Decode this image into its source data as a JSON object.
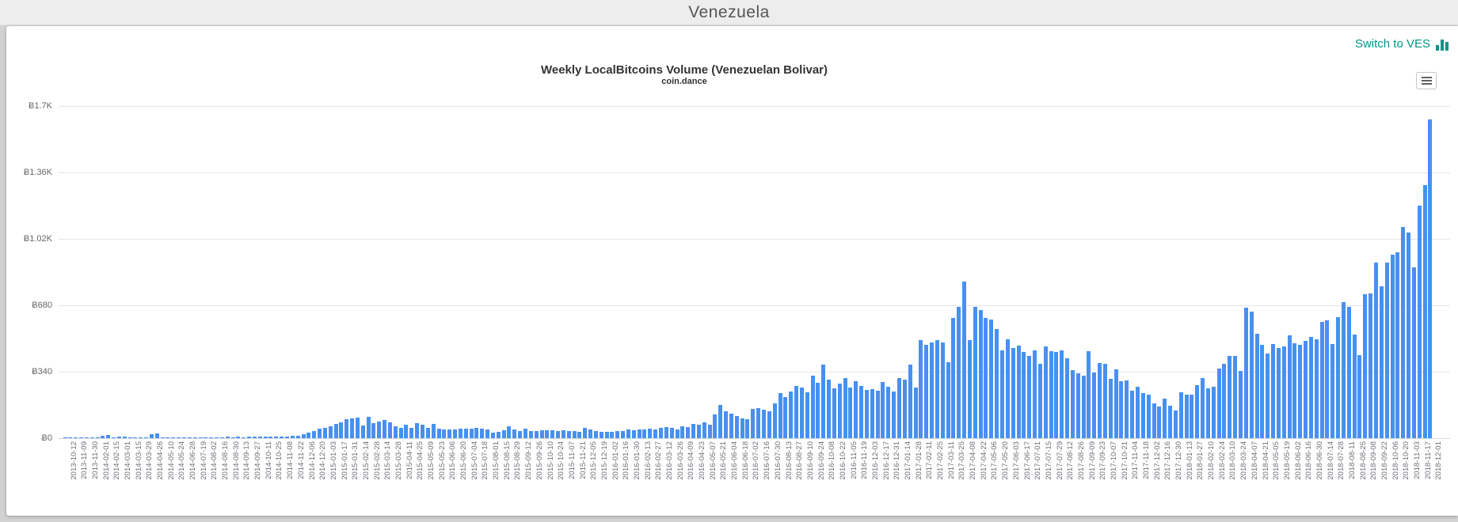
{
  "page": {
    "header_title": "Venezuela"
  },
  "toolbar": {
    "switch_label": "Switch to VES",
    "switch_icon": "bar-chart-icon",
    "menu_icon": "hamburger-icon"
  },
  "chart": {
    "title": "Weekly LocalBitcoins Volume (Venezuelan Bolivar)",
    "subtitle": "coin.dance"
  },
  "colors": {
    "bar": "#4890f0",
    "accent_teal": "#009688",
    "grid": "#e6e6e6",
    "axis_line": "#d4d8de",
    "y_tick_text": "#666666",
    "x_tick_text": "#70707a",
    "title_text": "#333333",
    "header_bg": "#ededed",
    "page_bg": "#d2d2d2",
    "card_bg": "#ffffff"
  },
  "chart_data": {
    "type": "bar",
    "title": "Weekly LocalBitcoins Volume (Venezuelan Bolivar)",
    "subtitle": "coin.dance",
    "ylabel": "",
    "xlabel": "",
    "ylim": [
      0,
      1700
    ],
    "grid": "horizontal",
    "legend": "none",
    "x_label_every": 2,
    "x_label_rotation": -90,
    "y_ticks": [
      {
        "label": "Ƀ0",
        "value": 0
      },
      {
        "label": "Ƀ340",
        "value": 340
      },
      {
        "label": "Ƀ680",
        "value": 680
      },
      {
        "label": "Ƀ1.02K",
        "value": 1020
      },
      {
        "label": "Ƀ1.36K",
        "value": 1360
      },
      {
        "label": "Ƀ1.7K",
        "value": 1700
      }
    ],
    "x": [
      "2013-10-12",
      "2013-10-26",
      "2013-11-09",
      "2013-11-16",
      "2013-11-30",
      "2013-12-28",
      "2014-02-01",
      "2014-02-08",
      "2014-02-15",
      "2014-02-22",
      "2014-03-01",
      "2014-03-08",
      "2014-03-15",
      "2014-03-22",
      "2014-03-29",
      "2014-04-12",
      "2014-04-26",
      "2014-05-03",
      "2014-05-10",
      "2014-05-17",
      "2014-05-24",
      "2014-06-07",
      "2014-06-28",
      "2014-07-05",
      "2014-07-19",
      "2014-07-26",
      "2014-08-02",
      "2014-08-09",
      "2014-08-16",
      "2014-08-23",
      "2014-08-30",
      "2014-09-06",
      "2014-09-13",
      "2014-09-20",
      "2014-09-27",
      "2014-10-04",
      "2014-10-11",
      "2014-10-18",
      "2014-10-25",
      "2014-11-01",
      "2014-11-08",
      "2014-11-15",
      "2014-11-22",
      "2014-11-29",
      "2014-12-06",
      "2014-12-13",
      "2014-12-20",
      "2014-12-27",
      "2015-01-03",
      "2015-01-10",
      "2015-01-17",
      "2015-01-24",
      "2015-01-31",
      "2015-02-07",
      "2015-02-14",
      "2015-02-21",
      "2015-02-28",
      "2015-03-07",
      "2015-03-14",
      "2015-03-21",
      "2015-03-28",
      "2015-04-04",
      "2015-04-11",
      "2015-04-18",
      "2015-04-25",
      "2015-05-02",
      "2015-05-09",
      "2015-05-16",
      "2015-05-23",
      "2015-05-30",
      "2015-06-06",
      "2015-06-13",
      "2015-06-20",
      "2015-06-27",
      "2015-07-04",
      "2015-07-11",
      "2015-07-18",
      "2015-07-25",
      "2015-08-01",
      "2015-08-08",
      "2015-08-15",
      "2015-08-22",
      "2015-08-29",
      "2015-09-05",
      "2015-09-12",
      "2015-09-19",
      "2015-09-26",
      "2015-10-03",
      "2015-10-10",
      "2015-10-17",
      "2015-10-24",
      "2015-10-31",
      "2015-11-07",
      "2015-11-14",
      "2015-11-21",
      "2015-11-28",
      "2015-12-05",
      "2015-12-12",
      "2015-12-19",
      "2015-12-26",
      "2016-01-02",
      "2016-01-09",
      "2016-01-16",
      "2016-01-23",
      "2016-01-30",
      "2016-02-06",
      "2016-02-13",
      "2016-02-20",
      "2016-02-27",
      "2016-03-05",
      "2016-03-12",
      "2016-03-19",
      "2016-03-26",
      "2016-04-02",
      "2016-04-09",
      "2016-04-16",
      "2016-04-23",
      "2016-04-30",
      "2016-05-07",
      "2016-05-14",
      "2016-05-21",
      "2016-05-28",
      "2016-06-04",
      "2016-06-11",
      "2016-06-18",
      "2016-06-25",
      "2016-07-02",
      "2016-07-09",
      "2016-07-16",
      "2016-07-23",
      "2016-07-30",
      "2016-08-06",
      "2016-08-13",
      "2016-08-20",
      "2016-08-27",
      "2016-09-03",
      "2016-09-10",
      "2016-09-17",
      "2016-09-24",
      "2016-10-01",
      "2016-10-08",
      "2016-10-15",
      "2016-10-22",
      "2016-10-29",
      "2016-11-05",
      "2016-11-12",
      "2016-11-19",
      "2016-11-26",
      "2016-12-03",
      "2016-12-10",
      "2016-12-17",
      "2016-12-24",
      "2016-12-31",
      "2017-01-07",
      "2017-01-14",
      "2017-01-21",
      "2017-01-28",
      "2017-02-04",
      "2017-02-11",
      "2017-02-18",
      "2017-02-25",
      "2017-03-04",
      "2017-03-11",
      "2017-03-18",
      "2017-03-25",
      "2017-04-01",
      "2017-04-08",
      "2017-04-15",
      "2017-04-22",
      "2017-04-29",
      "2017-05-06",
      "2017-05-13",
      "2017-05-20",
      "2017-05-27",
      "2017-06-03",
      "2017-06-10",
      "2017-06-17",
      "2017-06-24",
      "2017-07-01",
      "2017-07-08",
      "2017-07-15",
      "2017-07-22",
      "2017-07-29",
      "2017-08-05",
      "2017-08-12",
      "2017-08-19",
      "2017-08-26",
      "2017-09-02",
      "2017-09-09",
      "2017-09-16",
      "2017-09-23",
      "2017-09-30",
      "2017-10-07",
      "2017-10-14",
      "2017-10-21",
      "2017-10-28",
      "2017-11-04",
      "2017-11-11",
      "2017-11-18",
      "2017-11-25",
      "2017-12-02",
      "2017-12-09",
      "2017-12-16",
      "2017-12-23",
      "2017-12-30",
      "2018-01-06",
      "2018-01-13",
      "2018-01-20",
      "2018-01-27",
      "2018-02-03",
      "2018-02-10",
      "2018-02-17",
      "2018-02-24",
      "2018-03-03",
      "2018-03-10",
      "2018-03-17",
      "2018-03-24",
      "2018-03-31",
      "2018-04-07",
      "2018-04-14",
      "2018-04-21",
      "2018-04-28",
      "2018-05-05",
      "2018-05-12",
      "2018-05-19",
      "2018-05-26",
      "2018-06-02",
      "2018-06-09",
      "2018-06-16",
      "2018-06-23",
      "2018-06-30",
      "2018-07-07",
      "2018-07-14",
      "2018-07-21",
      "2018-07-28",
      "2018-08-04",
      "2018-08-11",
      "2018-08-18",
      "2018-08-25",
      "2018-09-01",
      "2018-09-08",
      "2018-09-15",
      "2018-09-22",
      "2018-09-29",
      "2018-10-06",
      "2018-10-13",
      "2018-10-20",
      "2018-10-27",
      "2018-11-03",
      "2018-11-10",
      "2018-11-17",
      "2018-11-24",
      "2018-12-01"
    ],
    "values": [
      2,
      1,
      3,
      1,
      2,
      2,
      4,
      14,
      16,
      3,
      9,
      10,
      3,
      2,
      3,
      5,
      22,
      24,
      3,
      4,
      3,
      2,
      6,
      3,
      4,
      3,
      5,
      4,
      6,
      4,
      7,
      5,
      8,
      6,
      8,
      7,
      9,
      8,
      9,
      8,
      10,
      9,
      11,
      13,
      19,
      27,
      36,
      47,
      54,
      59,
      73,
      81,
      97,
      101,
      104,
      63,
      108,
      77,
      86,
      93,
      81,
      59,
      51,
      70,
      54,
      77,
      70,
      53,
      73,
      47,
      43,
      46,
      43,
      50,
      47,
      48,
      54,
      50,
      43,
      30,
      32,
      41,
      59,
      46,
      38,
      50,
      38,
      35,
      39,
      41,
      42,
      38,
      39,
      38,
      36,
      34,
      54,
      43,
      38,
      31,
      34,
      31,
      38,
      35,
      43,
      41,
      46,
      43,
      50,
      43,
      54,
      57,
      51,
      46,
      59,
      57,
      73,
      70,
      81,
      70,
      122,
      171,
      138,
      127,
      115,
      103,
      96,
      150,
      153,
      147,
      137,
      178,
      230,
      212,
      238,
      268,
      258,
      233,
      318,
      283,
      378,
      298,
      253,
      278,
      308,
      258,
      292,
      268,
      248,
      250,
      243,
      288,
      262,
      237,
      306,
      300,
      378,
      260,
      500,
      478,
      490,
      500,
      490,
      390,
      615,
      672,
      800,
      500,
      670,
      656,
      615,
      606,
      560,
      450,
      505,
      462,
      475,
      440,
      420,
      450,
      380,
      470,
      445,
      440,
      450,
      410,
      350,
      330,
      318,
      445,
      335,
      385,
      380,
      303,
      351,
      291,
      294,
      243,
      264,
      232,
      221,
      178,
      160,
      202,
      164,
      143,
      234,
      223,
      223,
      271,
      307,
      257,
      262,
      355,
      380,
      419,
      419,
      346,
      667,
      649,
      533,
      478,
      433,
      480,
      463,
      470,
      525,
      484,
      477,
      498,
      518,
      505,
      594,
      604,
      480,
      621,
      697,
      672,
      532,
      425,
      736,
      742,
      898,
      776,
      900,
      938,
      950,
      1081,
      1054,
      873,
      1189,
      1297,
      1630
    ]
  }
}
